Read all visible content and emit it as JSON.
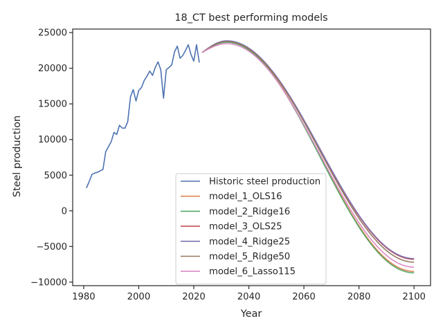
{
  "chart_data": {
    "type": "line",
    "title": "18_CT best performing models",
    "xlabel": "Year",
    "ylabel": "Steel production",
    "xlim": [
      1976,
      2106
    ],
    "ylim": [
      -10500,
      25500
    ],
    "xticks": [
      1980,
      2000,
      2020,
      2040,
      2060,
      2080,
      2100
    ],
    "yticks": [
      -10000,
      -5000,
      0,
      5000,
      10000,
      15000,
      20000,
      25000
    ],
    "xtick_labels": [
      "1980",
      "2000",
      "2020",
      "2040",
      "2060",
      "2080",
      "2100"
    ],
    "ytick_labels": [
      "−10000",
      "−5000",
      "0",
      "5000",
      "10000",
      "15000",
      "20000",
      "25000"
    ],
    "legend_position": "lower center",
    "grid": false,
    "historic": {
      "name": "Historic steel production",
      "color": "#4c72b0",
      "x": [
        1981,
        1982,
        1983,
        1984,
        1985,
        1986,
        1987,
        1988,
        1989,
        1990,
        1991,
        1992,
        1993,
        1994,
        1995,
        1996,
        1997,
        1998,
        1999,
        2000,
        2001,
        2002,
        2003,
        2004,
        2005,
        2006,
        2007,
        2008,
        2009,
        2010,
        2011,
        2012,
        2013,
        2014,
        2015,
        2016,
        2017,
        2018,
        2019,
        2020,
        2021,
        2022
      ],
      "y": [
        3200,
        4100,
        5100,
        5300,
        5400,
        5600,
        5800,
        8300,
        9000,
        9700,
        11000,
        10700,
        12000,
        11600,
        11600,
        12500,
        16000,
        17000,
        15400,
        16900,
        17300,
        18300,
        18900,
        19600,
        19000,
        20100,
        20900,
        19800,
        15800,
        19800,
        20100,
        20500,
        22300,
        23100,
        21400,
        21800,
        22500,
        23300,
        21900,
        21000,
        23300,
        20800
      ]
    },
    "models": [
      {
        "name": "model_1_OLS16",
        "color": "#dd8452",
        "peak": 23700,
        "end": -8500
      },
      {
        "name": "model_2_Ridge16",
        "color": "#55a868",
        "peak": 23650,
        "end": -8700
      },
      {
        "name": "model_3_OLS25",
        "color": "#c44e52",
        "peak": 23800,
        "end": -6800
      },
      {
        "name": "model_4_Ridge25",
        "color": "#8172b3",
        "peak": 23850,
        "end": -6700
      },
      {
        "name": "model_5_Ridge50",
        "color": "#937860",
        "peak": 23750,
        "end": -7200
      },
      {
        "name": "model_6_Lasso115",
        "color": "#da8bc3",
        "peak": 23450,
        "end": -7900
      }
    ],
    "projection": {
      "start_x": 2023,
      "start_y": 22200,
      "peak_x": 2032,
      "end_x": 2100
    }
  }
}
